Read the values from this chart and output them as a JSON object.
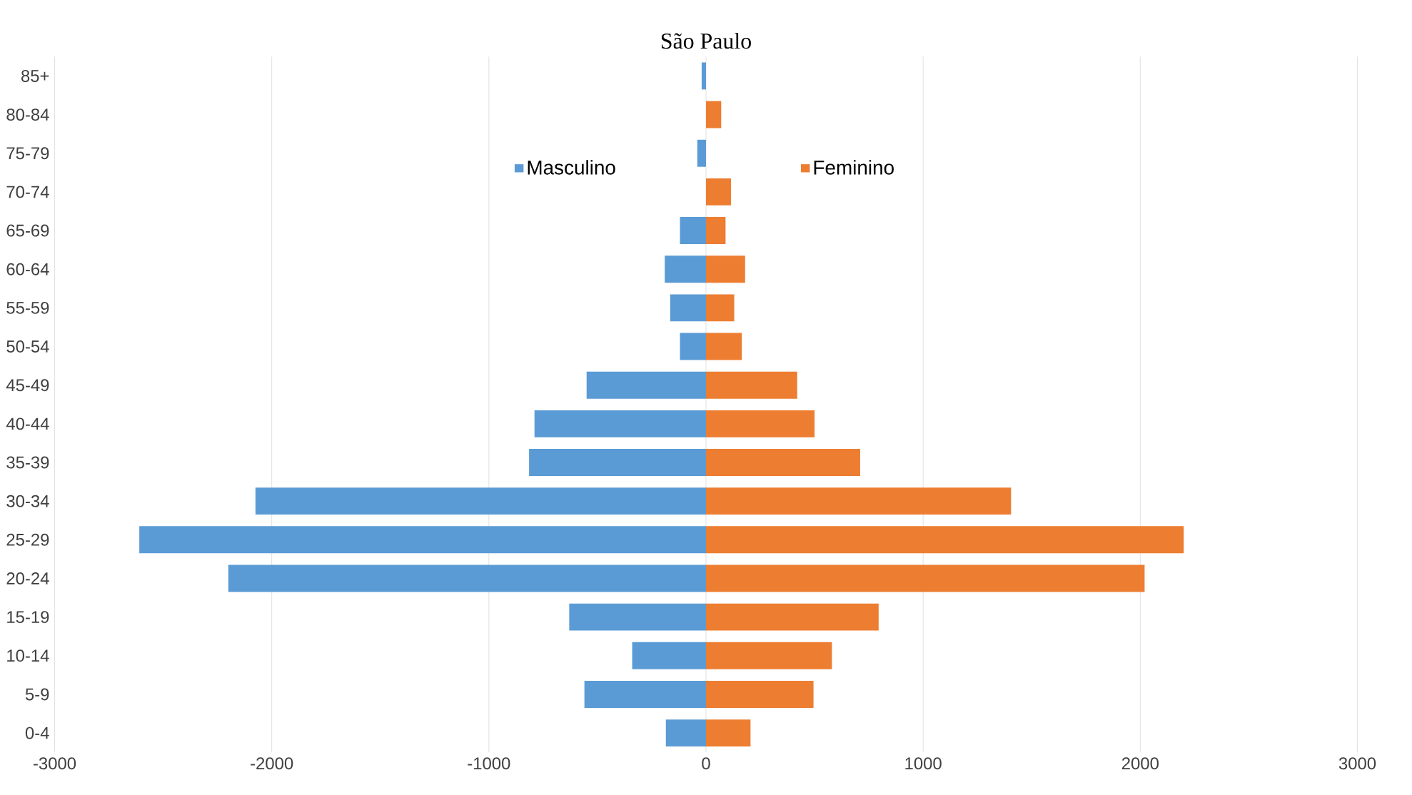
{
  "chart_data": {
    "type": "bar",
    "orientation": "horizontal",
    "title": "São Paulo",
    "categories": [
      "85+",
      "80-84",
      "75-79",
      "70-74",
      "65-69",
      "60-64",
      "55-59",
      "50-54",
      "45-49",
      "40-44",
      "35-39",
      "30-34",
      "25-29",
      "20-24",
      "15-19",
      "10-14",
      "5-9",
      "0-4"
    ],
    "series": [
      {
        "name": "Masculino",
        "color": "#5b9bd5",
        "values": [
          -20,
          0,
          -40,
          0,
          -120,
          -190,
          -165,
          -120,
          -550,
          -790,
          -815,
          -2075,
          -2610,
          -2200,
          -630,
          -340,
          -560,
          -185
        ]
      },
      {
        "name": "Feminino",
        "color": "#ed7d31",
        "values": [
          0,
          70,
          0,
          115,
          90,
          180,
          130,
          165,
          420,
          500,
          710,
          1405,
          2200,
          2020,
          795,
          580,
          495,
          205
        ]
      }
    ],
    "xlim": [
      -3000,
      3000
    ],
    "xticks": [
      -3000,
      -2000,
      -1000,
      0,
      1000,
      2000,
      3000
    ],
    "grid": "x",
    "legend": "top",
    "stacked": true
  }
}
